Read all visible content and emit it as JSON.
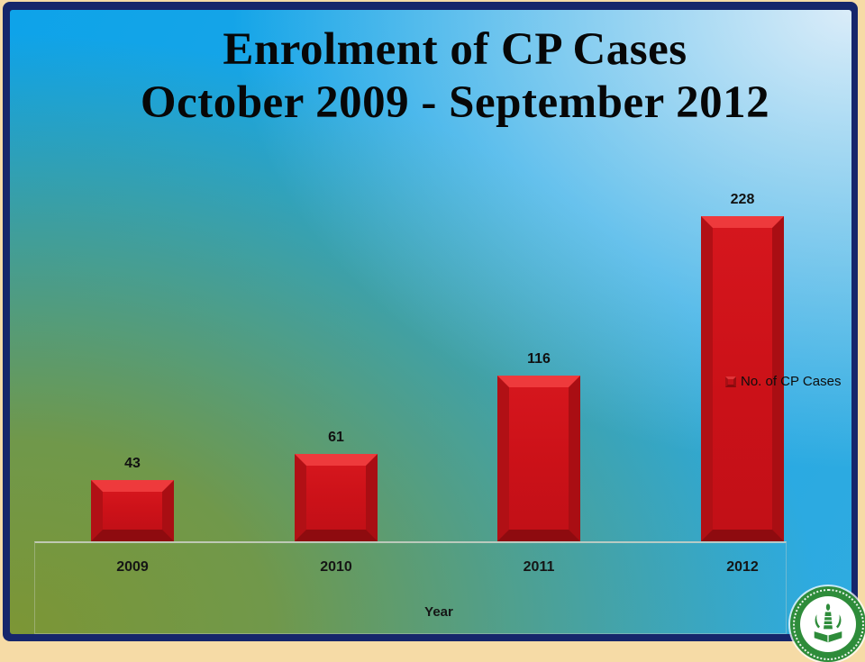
{
  "slide": {
    "title_line1": "Enrolment of CP Cases",
    "title_line2": "October 2009 - September 2012"
  },
  "chart_data": {
    "type": "bar",
    "title": "Enrolment of CP Cases",
    "subtitle": "October 2009 - September 2012",
    "categories": [
      "2009",
      "2010",
      "2011",
      "2012"
    ],
    "series": [
      {
        "name": "No. of CP Cases",
        "values": [
          43,
          61,
          116,
          228
        ]
      }
    ],
    "data_labels": [
      43,
      61,
      116,
      228
    ],
    "xlabel": "Year",
    "ylabel": "",
    "ylim": [
      0,
      240
    ],
    "grid": false,
    "legend_position": "middle-right",
    "bar_color": "#cf1219"
  },
  "colors": {
    "frame_outer": "#f6dba6",
    "frame_border": "#16266b",
    "bg_blue": "#18a6e7",
    "bg_blue_light": "#dcecf8",
    "bg_olive": "#7c9635",
    "bar_face": "#cf1219",
    "bar_bevel_light": "#ee3a3c",
    "bar_bevel_dark": "#8e0b0f",
    "axis_line": "#c9cdc4",
    "text": "#0a0a0a"
  },
  "logo": {
    "name": "institute-seal"
  }
}
